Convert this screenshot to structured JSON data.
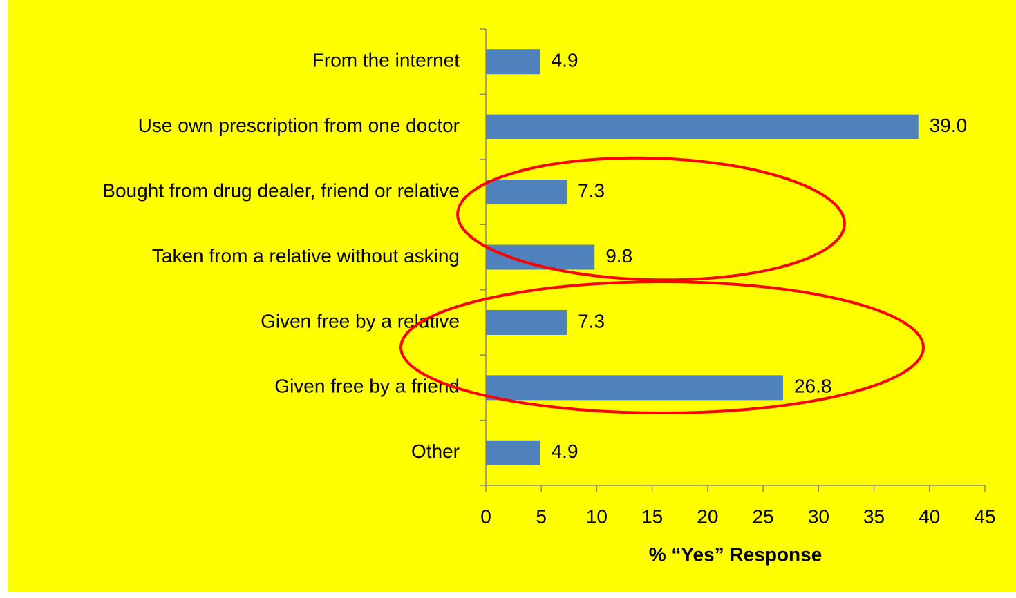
{
  "chart_data": {
    "type": "bar",
    "orientation": "horizontal",
    "categories": [
      "From the internet",
      "Use own prescription from one doctor",
      "Bought from drug dealer, friend or relative",
      "Taken from a relative without asking",
      "Given free by a relative",
      "Given free by a friend",
      "Other"
    ],
    "values": [
      4.9,
      39.0,
      7.3,
      9.8,
      7.3,
      26.8,
      4.9
    ],
    "value_labels": [
      "4.9",
      "39.0",
      "7.3",
      "9.8",
      "7.3",
      "26.8",
      "4.9"
    ],
    "color": "#4f81bd",
    "xlabel": "% “Yes” Response",
    "xlim": [
      0,
      45
    ],
    "xticks": [
      0,
      5,
      10,
      15,
      20,
      25,
      30,
      35,
      40,
      45
    ]
  }
}
